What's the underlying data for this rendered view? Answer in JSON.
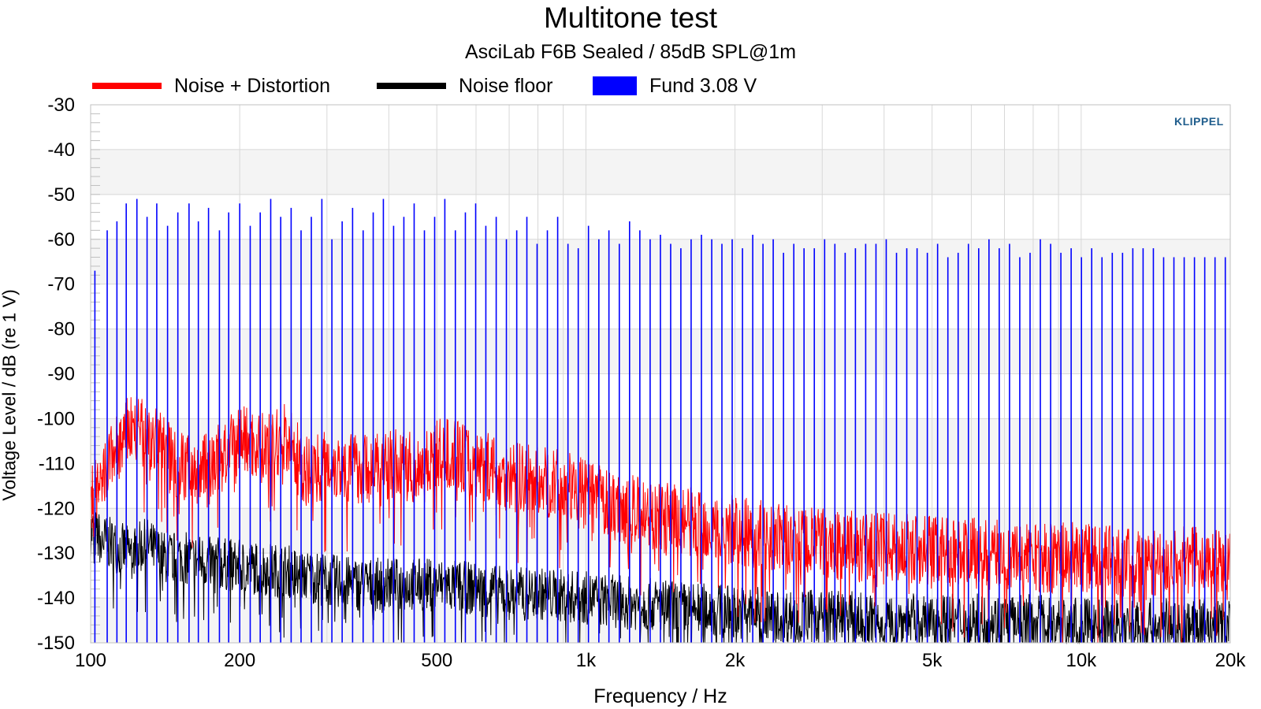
{
  "chart_data": {
    "type": "line",
    "title": "Multitone test",
    "subtitle": "AsciLab F6B Sealed / 85dB SPL@1m",
    "xlabel": "Frequency / Hz",
    "ylabel": "Voltage Level / dB (re 1 V)",
    "x_scale": "log",
    "xlim": [
      100,
      20000
    ],
    "ylim": [
      -150,
      -30
    ],
    "grid": true,
    "legend_position": "top",
    "x_ticks": [
      {
        "value": 100,
        "label": "100"
      },
      {
        "value": 200,
        "label": "200"
      },
      {
        "value": 500,
        "label": "500"
      },
      {
        "value": 1000,
        "label": "1k"
      },
      {
        "value": 2000,
        "label": "2k"
      },
      {
        "value": 5000,
        "label": "5k"
      },
      {
        "value": 10000,
        "label": "10k"
      },
      {
        "value": 20000,
        "label": "20k"
      }
    ],
    "y_ticks": [
      {
        "value": -30,
        "label": "-30"
      },
      {
        "value": -40,
        "label": "-40"
      },
      {
        "value": -50,
        "label": "-50"
      },
      {
        "value": -60,
        "label": "-60"
      },
      {
        "value": -70,
        "label": "-70"
      },
      {
        "value": -80,
        "label": "-80"
      },
      {
        "value": -90,
        "label": "-90"
      },
      {
        "value": -100,
        "label": "-100"
      },
      {
        "value": -110,
        "label": "-110"
      },
      {
        "value": -120,
        "label": "-120"
      },
      {
        "value": -130,
        "label": "-130"
      },
      {
        "value": -140,
        "label": "-140"
      },
      {
        "value": -150,
        "label": "-150"
      }
    ],
    "series": [
      {
        "name": "Noise + Distortion",
        "color": "#ff0000",
        "x": [
          100,
          105,
          110,
          115,
          120,
          130,
          140,
          150,
          160,
          175,
          190,
          200,
          215,
          230,
          250,
          270,
          300,
          330,
          360,
          400,
          450,
          500,
          550,
          600,
          650,
          700,
          800,
          900,
          1000,
          1100,
          1200,
          1400,
          1600,
          1800,
          2000,
          2500,
          3000,
          4000,
          5000,
          6000,
          8000,
          10000,
          12000,
          15000,
          18000,
          20000
        ],
        "y": [
          -118,
          -116,
          -108,
          -106,
          -102,
          -104,
          -106,
          -110,
          -111,
          -110,
          -108,
          -104,
          -106,
          -107,
          -104,
          -112,
          -110,
          -111,
          -111,
          -110,
          -111,
          -108,
          -108,
          -110,
          -111,
          -113,
          -114,
          -115,
          -117,
          -119,
          -120,
          -122,
          -123,
          -124,
          -125,
          -127,
          -128,
          -129,
          -129,
          -130,
          -131,
          -131,
          -132,
          -132,
          -131,
          -131
        ]
      },
      {
        "name": "Noise floor",
        "color": "#000000",
        "x": [
          100,
          105,
          110,
          120,
          130,
          140,
          150,
          175,
          200,
          250,
          300,
          350,
          400,
          500,
          600,
          700,
          800,
          1000,
          1200,
          1500,
          2000,
          2500,
          3000,
          4000,
          5000,
          6000,
          8000,
          10000,
          15000,
          20000
        ],
        "y": [
          -125,
          -127,
          -128,
          -130,
          -128,
          -131,
          -131,
          -132,
          -133,
          -134,
          -136,
          -137,
          -137,
          -137,
          -138,
          -139,
          -139,
          -140,
          -141,
          -142,
          -143,
          -144,
          -144,
          -145,
          -145,
          -145,
          -145,
          -146,
          -146,
          -146
        ]
      },
      {
        "name": "Fund 3.08 V",
        "color": "#0000ff",
        "type": "stem",
        "x": [
          102,
          108,
          113,
          118,
          124,
          130,
          136,
          143,
          150,
          158,
          165,
          173,
          182,
          190,
          200,
          210,
          220,
          231,
          242,
          254,
          266,
          279,
          293,
          307,
          322,
          338,
          355,
          372,
          390,
          409,
          429,
          450,
          472,
          495,
          519,
          545,
          571,
          599,
          628,
          659,
          691,
          725,
          760,
          797,
          836,
          877,
          920,
          965,
          1012,
          1062,
          1113,
          1168,
          1225,
          1285,
          1348,
          1414,
          1483,
          1555,
          1631,
          1711,
          1795,
          1882,
          1974,
          2071,
          2172,
          2278,
          2389,
          2506,
          2629,
          2757,
          2892,
          3034,
          3182,
          3338,
          3501,
          3672,
          3852,
          4040,
          4238,
          4445,
          4663,
          4891,
          5130,
          5381,
          5644,
          5920,
          6210,
          6514,
          6832,
          7167,
          7517,
          7885,
          8271,
          8676,
          9100,
          9545,
          10013,
          10502,
          11016,
          11556,
          12121,
          12714,
          13336,
          13989,
          14673,
          15391,
          16144,
          16934,
          17763,
          18632,
          19544
        ],
        "y": [
          -67,
          -58,
          -56,
          -52,
          -51,
          -55,
          -52,
          -57,
          -54,
          -52,
          -56,
          -53,
          -58,
          -54,
          -52,
          -57,
          -54,
          -51,
          -55,
          -53,
          -58,
          -55,
          -51,
          -60,
          -56,
          -53,
          -58,
          -54,
          -51,
          -57,
          -55,
          -52,
          -58,
          -55,
          -51,
          -58,
          -54,
          -52,
          -57,
          -55,
          -60,
          -58,
          -55,
          -61,
          -58,
          -55,
          -61,
          -62,
          -57,
          -60,
          -58,
          -61,
          -56,
          -58,
          -60,
          -59,
          -61,
          -62,
          -60,
          -59,
          -60,
          -61,
          -60,
          -62,
          -59,
          -61,
          -60,
          -63,
          -61,
          -62,
          -62,
          -60,
          -61,
          -63,
          -62,
          -61,
          -61,
          -60,
          -63,
          -62,
          -62,
          -63,
          -61,
          -64,
          -63,
          -61,
          -62,
          -60,
          -62,
          -61,
          -64,
          -63,
          -60,
          -61,
          -63,
          -62,
          -64,
          -62,
          -64,
          -63,
          -63,
          -62,
          -62,
          -62,
          -64,
          -64,
          -64,
          -64,
          -64,
          -64,
          -64
        ]
      }
    ]
  },
  "legend": [
    {
      "label": "Noise + Distortion",
      "color": "#ff0000",
      "swatch": "line"
    },
    {
      "label": "Noise floor",
      "color": "#000000",
      "swatch": "line"
    },
    {
      "label": "Fund 3.08 V",
      "color": "#0000ff",
      "swatch": "box"
    }
  ],
  "brand": {
    "name": "KLIPPEL"
  }
}
